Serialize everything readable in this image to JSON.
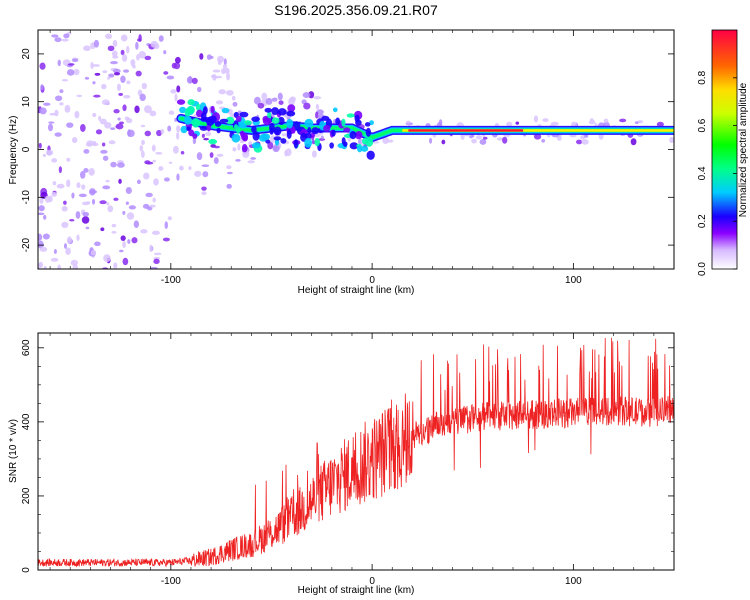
{
  "title": "S196.2025.356.09.21.R07",
  "chart_data": [
    {
      "type": "heatmap",
      "name": "spectrogram",
      "xlabel": "Height of straight line (km)",
      "ylabel": "Frequency (Hz)",
      "xlim": [
        -166,
        150
      ],
      "ylim": [
        -25,
        25
      ],
      "xticks": [
        -100,
        0,
        100
      ],
      "xtick_labels": [
        "-100",
        "0",
        "100"
      ],
      "yticks": [
        -20,
        -10,
        0,
        10,
        20
      ],
      "ytick_labels": [
        "-20",
        "-10",
        "0",
        "10",
        "20"
      ],
      "tone_track": {
        "description": "dominant carrier frequency versus height",
        "x": [
          -100,
          -80,
          -60,
          -40,
          -30,
          -20,
          -10,
          0,
          10,
          20,
          50,
          80,
          100,
          120,
          150
        ],
        "y": [
          7,
          5,
          4,
          5,
          4.5,
          4.5,
          4.5,
          2.5,
          4,
          4,
          4,
          4,
          4,
          4,
          4
        ]
      },
      "colorbar": {
        "label": "Normalized spectral amplitude",
        "range": [
          0,
          1
        ],
        "ticks": [
          0.0,
          0.2,
          0.4,
          0.6,
          0.8
        ],
        "tick_labels": [
          "0.0",
          "0.2",
          "0.4",
          "0.6",
          "0.8"
        ]
      }
    },
    {
      "type": "line",
      "name": "snr",
      "xlabel": "Height of straight line (km)",
      "ylabel": "SNR (10 * v/v)",
      "xlim": [
        -166,
        150
      ],
      "ylim": [
        0,
        640
      ],
      "xticks": [
        -100,
        0,
        100
      ],
      "xtick_labels": [
        "-100",
        "0",
        "100"
      ],
      "yticks": [
        0,
        200,
        400,
        600
      ],
      "ytick_labels": [
        "0",
        "200",
        "400",
        "600"
      ],
      "color": "#ee2222",
      "trend": {
        "x": [
          -166,
          -120,
          -100,
          -90,
          -80,
          -70,
          -60,
          -50,
          -40,
          -30,
          -20,
          -10,
          0,
          10,
          20,
          30,
          40,
          50,
          60,
          80,
          100,
          120,
          140,
          150
        ],
        "y": [
          20,
          20,
          20,
          25,
          35,
          55,
          70,
          100,
          140,
          185,
          230,
          270,
          300,
          330,
          360,
          385,
          400,
          410,
          415,
          420,
          425,
          430,
          425,
          435
        ]
      }
    }
  ]
}
